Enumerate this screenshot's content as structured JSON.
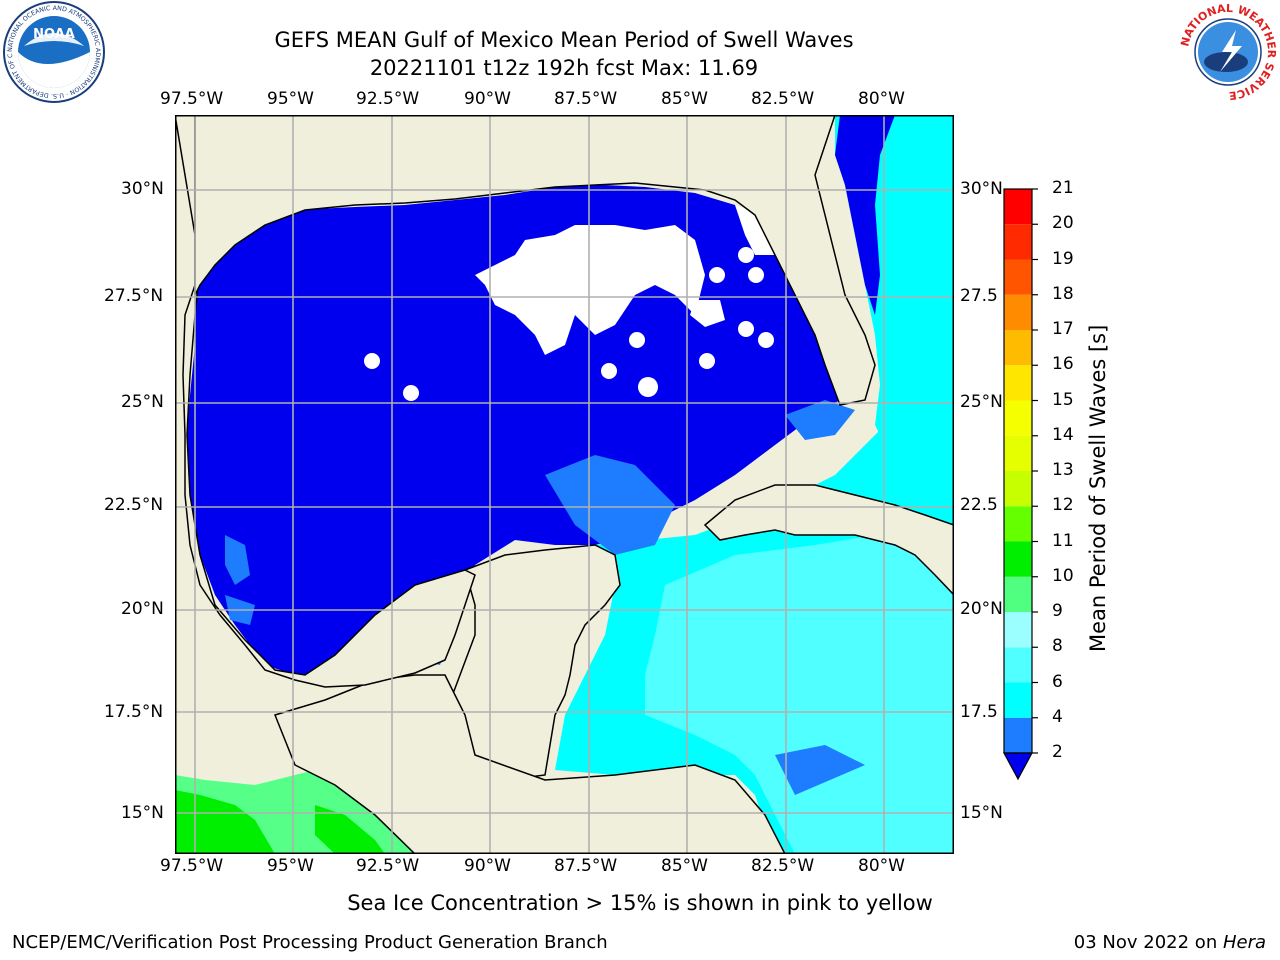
{
  "header": {
    "title_line1": "GEFS MEAN Gulf of Mexico Mean Period of Swell Waves",
    "title_line2": "20221101 t12z 192h fcst   Max: 11.69"
  },
  "map": {
    "lon_labels": [
      "97.5°W",
      "95°W",
      "92.5°W",
      "90°W",
      "87.5°W",
      "85°W",
      "82.5°W",
      "80°W"
    ],
    "lat_labels_left": [
      "30°N",
      "27.5°N",
      "25°N",
      "22.5°N",
      "20°N",
      "17.5°N",
      "15°N"
    ],
    "lat_labels_right": [
      "30°N",
      "27.5",
      "25°N",
      "22.5",
      "20°N",
      "17.5",
      "15°N"
    ],
    "colors": {
      "land": "#efefdc",
      "deep_blue": "#0000ee",
      "mid_blue": "#1e7dff",
      "cyan": "#00ffff",
      "light_cyan": "#50ffff",
      "green": "#00ee00",
      "light_green": "#55ff88",
      "grid": "#b0b0b0"
    }
  },
  "colorbar": {
    "title": "Mean Period of Swell Waves [s]",
    "labels": [
      "2",
      "4",
      "6",
      "8",
      "9",
      "10",
      "11",
      "12",
      "13",
      "14",
      "15",
      "16",
      "17",
      "18",
      "19",
      "20",
      "21"
    ],
    "colors": [
      "#0000ee",
      "#1e7dff",
      "#00ffff",
      "#50ffff",
      "#9bffff",
      "#50ff80",
      "#00ee00",
      "#66ff00",
      "#c8ff00",
      "#e6ff00",
      "#f5ff00",
      "#ffe600",
      "#ffbb00",
      "#ff8c00",
      "#ff5500",
      "#ff2a00",
      "#ff0000"
    ]
  },
  "logos": {
    "left_text": "NOAA",
    "left_ring": "NATIONAL OCEANIC AND ATMOSPHERIC ADMINISTRATION · U.S. DEPARTMENT OF COMMERCE",
    "right_ring": "NATIONAL WEATHER SERVICE"
  },
  "footer": {
    "note": "Sea Ice Concentration > 15% is shown in pink to yellow",
    "left": "NCEP/EMC/Verification Post Processing Product Generation Branch",
    "date": "03 Nov 2022 on ",
    "machine": "Hera"
  }
}
